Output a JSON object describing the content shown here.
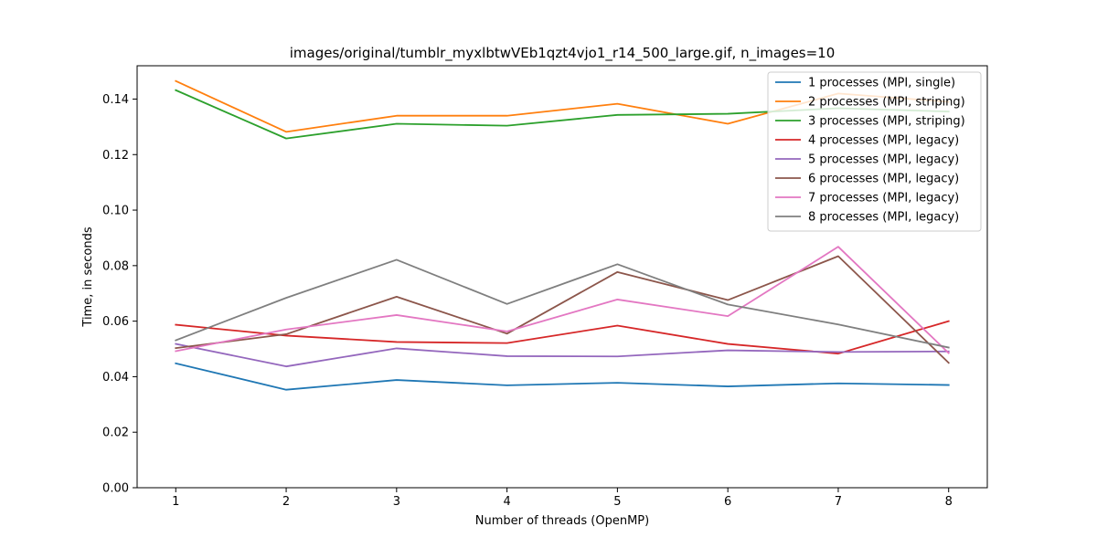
{
  "chart_data": {
    "type": "line",
    "title": "images/original/tumblr_myxlbtwVEb1qzt4vjo1_r14_500_large.gif, n_images=10",
    "xlabel": "Number of threads (OpenMP)",
    "ylabel": "Time, in seconds",
    "x": [
      1,
      2,
      3,
      4,
      5,
      6,
      7,
      8
    ],
    "xticks": [
      "1",
      "2",
      "3",
      "4",
      "5",
      "6",
      "7",
      "8"
    ],
    "yticks": [
      "0.00",
      "0.02",
      "0.04",
      "0.06",
      "0.08",
      "0.10",
      "0.12",
      "0.14"
    ],
    "xlim": [
      0.65,
      8.35
    ],
    "ylim": [
      0,
      0.152
    ],
    "legend_position": "top-right",
    "series": [
      {
        "name": "1 processes (MPI, single)",
        "color": "#1f77b4",
        "values": [
          0.0448,
          0.0353,
          0.0388,
          0.0369,
          0.0378,
          0.0365,
          0.0376,
          0.037
        ]
      },
      {
        "name": "2 processes (MPI, striping)",
        "color": "#ff7f0e",
        "values": [
          0.1465,
          0.1282,
          0.134,
          0.134,
          0.1383,
          0.1311,
          0.142,
          0.139
        ]
      },
      {
        "name": "3 processes (MPI, striping)",
        "color": "#2ca02c",
        "values": [
          0.1432,
          0.1258,
          0.1311,
          0.1304,
          0.1343,
          0.1347,
          0.1367,
          0.1355
        ]
      },
      {
        "name": "4 processes (MPI, legacy)",
        "color": "#d62728",
        "values": [
          0.0587,
          0.0548,
          0.0525,
          0.0521,
          0.0584,
          0.0518,
          0.0483,
          0.06
        ]
      },
      {
        "name": "5 processes (MPI, legacy)",
        "color": "#9467bd",
        "values": [
          0.0518,
          0.0437,
          0.0502,
          0.0474,
          0.0473,
          0.0495,
          0.0489,
          0.0491
        ]
      },
      {
        "name": "6 processes (MPI, legacy)",
        "color": "#8c564b",
        "values": [
          0.0503,
          0.0553,
          0.0688,
          0.0555,
          0.0777,
          0.0676,
          0.0834,
          0.045
        ]
      },
      {
        "name": "7 processes (MPI, legacy)",
        "color": "#e377c2",
        "values": [
          0.0492,
          0.057,
          0.0622,
          0.0563,
          0.0678,
          0.0618,
          0.0868,
          0.0485
        ]
      },
      {
        "name": "8 processes (MPI, legacy)",
        "color": "#7f7f7f",
        "values": [
          0.0531,
          0.0684,
          0.0821,
          0.0662,
          0.0805,
          0.066,
          0.0588,
          0.0505
        ]
      }
    ]
  }
}
